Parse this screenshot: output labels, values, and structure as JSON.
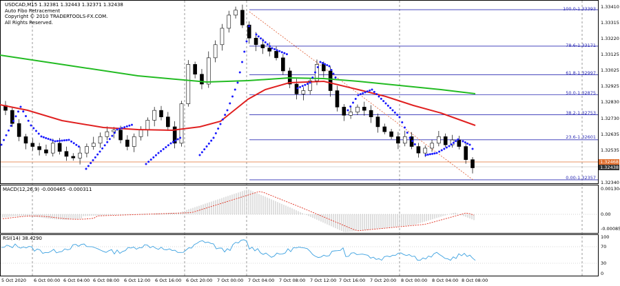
{
  "header": {
    "symbol_line": "USDCAD,M15  1.32381 1.32443 1.32371 1.32438",
    "indicator": "Auto Fibo Retracement",
    "copyright": "Copyright © 2010 TRADERTOOLS-FX.COM.",
    "rights": "All Rights Reserved."
  },
  "price_axis": [
    "1.33410",
    "1.33315",
    "1.33220",
    "1.33125",
    "1.33025",
    "1.32925",
    "1.32830",
    "1.32730",
    "1.32635",
    "1.32535",
    "1.32438",
    "1.32340"
  ],
  "price_tags": {
    "bid": "1.32468",
    "ask": "1.32438"
  },
  "fibo_levels": [
    {
      "label": "100.0-1.33393",
      "price": 1.33393
    },
    {
      "label": "78.6-1.33171",
      "price": 1.33171
    },
    {
      "label": "61.8-1.32997",
      "price": 1.32997
    },
    {
      "label": "50.0-1.32875",
      "price": 1.32875
    },
    {
      "label": "38.2-1.32753",
      "price": 1.32753
    },
    {
      "label": "23.6-1.32601",
      "price": 1.32601
    },
    {
      "label": "0.00-1.32357",
      "price": 1.32357
    }
  ],
  "macd": {
    "title": "MACD(12,26,9) -0.000465 -0.000311",
    "axis": [
      "0.001304",
      "0.00",
      "-0.000851"
    ]
  },
  "rsi": {
    "title": "RSI(14) 38.4290",
    "axis": [
      "100",
      "70",
      "30",
      "0"
    ]
  },
  "time_axis": [
    "5 Oct 2020",
    "6 Oct 00:00",
    "6 Oct 04:00",
    "6 Oct 08:00",
    "6 Oct 12:00",
    "6 Oct 16:00",
    "6 Oct 20:00",
    "7 Oct 00:00",
    "7 Oct 04:00",
    "7 Oct 08:00",
    "7 Oct 12:00",
    "7 Oct 16:00",
    "7 Oct 20:00",
    "8 Oct 00:00",
    "8 Oct 04:00",
    "8 Oct 08:00"
  ],
  "colors": {
    "ma_fast": "#e02020",
    "ma_slow": "#22bb22",
    "sar": "#1a1aff",
    "fibo": "#2b2bb3",
    "macd_signal": "#e03020",
    "rsi_line": "#3aa0e0",
    "bid_line": "#e07030"
  },
  "chart_data": {
    "type": "candlestick",
    "symbol": "USDCAD",
    "timeframe": "M15",
    "last_bar": {
      "open": 1.32381,
      "high": 1.32443,
      "low": 1.32371,
      "close": 1.32438
    },
    "ylim": [
      1.3234,
      1.3341
    ],
    "macd": {
      "main": -0.000465,
      "signal": -0.000311
    },
    "rsi": 38.429,
    "approx_closes": [
      1.3278,
      1.327,
      1.3262,
      1.3258,
      1.3256,
      1.3254,
      1.3252,
      1.3258,
      1.3253,
      1.325,
      1.3249,
      1.3252,
      1.3256,
      1.3258,
      1.3262,
      1.3265,
      1.3266,
      1.326,
      1.3256,
      1.3262,
      1.3266,
      1.3272,
      1.3278,
      1.3274,
      1.3268,
      1.3258,
      1.3282,
      1.3306,
      1.33,
      1.3294,
      1.331,
      1.3318,
      1.3328,
      1.3336,
      1.3339,
      1.333,
      1.3322,
      1.3318,
      1.3316,
      1.3314,
      1.331,
      1.3302,
      1.3294,
      1.3288,
      1.329,
      1.3296,
      1.3306,
      1.3302,
      1.329,
      1.328,
      1.3275,
      1.3277,
      1.328,
      1.3278,
      1.3274,
      1.3268,
      1.3265,
      1.3262,
      1.3258,
      1.3262,
      1.3256,
      1.3252,
      1.3255,
      1.3258,
      1.3262,
      1.3257,
      1.326,
      1.3256,
      1.3248,
      1.3243
    ]
  }
}
